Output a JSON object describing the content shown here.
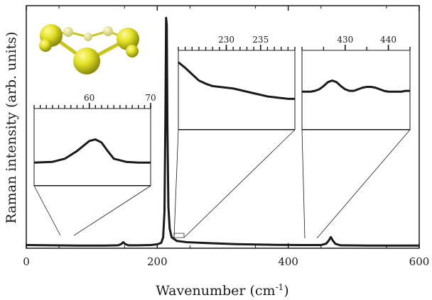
{
  "chart_data": {
    "type": "line",
    "xlabel_main": "Wavenumber (cm",
    "xlabel_sup": "-1",
    "xlabel_end": ")",
    "ylabel": "Raman intensity (arb. units)",
    "xlim": [
      0,
      600
    ],
    "ylim": [
      0,
      1
    ],
    "x_ticks": [
      0,
      200,
      400,
      600
    ],
    "y_ticks_labeled": false,
    "grid": false,
    "series": [
      {
        "color": "#1a1a1a",
        "x": [
          0,
          40,
          80,
          120,
          140,
          145,
          148,
          151,
          156,
          170,
          190,
          200,
          206,
          209,
          211,
          212.5,
          213.5,
          214.5,
          215.5,
          217,
          219,
          222,
          230,
          245,
          270,
          320,
          380,
          420,
          450,
          458,
          462,
          465,
          468,
          472,
          480,
          520,
          560,
          600
        ],
        "y": [
          0.013,
          0.012,
          0.011,
          0.011,
          0.012,
          0.017,
          0.025,
          0.017,
          0.012,
          0.012,
          0.013,
          0.016,
          0.022,
          0.045,
          0.15,
          0.55,
          0.95,
          0.92,
          0.5,
          0.17,
          0.08,
          0.045,
          0.03,
          0.025,
          0.022,
          0.017,
          0.014,
          0.013,
          0.013,
          0.019,
          0.032,
          0.046,
          0.032,
          0.018,
          0.012,
          0.011,
          0.011,
          0.011
        ]
      }
    ],
    "insets": [
      {
        "range": [
          51,
          70
        ],
        "tick_labels": [
          {
            "v": 60,
            "t": "60"
          },
          {
            "v": 70,
            "t": "70"
          }
        ],
        "minor_step": 1,
        "x": [
          51,
          54,
          56,
          58,
          60,
          61,
          62,
          63,
          64,
          66,
          68,
          70
        ],
        "y": [
          0.3,
          0.31,
          0.35,
          0.45,
          0.58,
          0.6,
          0.56,
          0.45,
          0.35,
          0.31,
          0.3,
          0.3
        ]
      },
      {
        "range": [
          223,
          240
        ],
        "tick_labels": [
          {
            "v": 230,
            "t": "230"
          },
          {
            "v": 235,
            "t": "235"
          }
        ],
        "minor_step": 1,
        "x": [
          223,
          224,
          225,
          226,
          227,
          228,
          229,
          230,
          231,
          232,
          233,
          234,
          235,
          236,
          237,
          238,
          239,
          240
        ],
        "y": [
          0.85,
          0.78,
          0.7,
          0.62,
          0.58,
          0.55,
          0.54,
          0.53,
          0.52,
          0.5,
          0.48,
          0.46,
          0.44,
          0.42,
          0.41,
          0.4,
          0.39,
          0.39
        ]
      },
      {
        "range": [
          420,
          445
        ],
        "tick_labels": [
          {
            "v": 430,
            "t": "430"
          },
          {
            "v": 440,
            "t": "440"
          }
        ],
        "minor_step": 5,
        "x": [
          420,
          421,
          422,
          423,
          424,
          425,
          426,
          427,
          428,
          429,
          430,
          431,
          432,
          433,
          434,
          435,
          436,
          437,
          438,
          439,
          440,
          441,
          442,
          443,
          444,
          445
        ],
        "y": [
          0.48,
          0.48,
          0.48,
          0.49,
          0.51,
          0.55,
          0.6,
          0.62,
          0.6,
          0.55,
          0.51,
          0.49,
          0.49,
          0.51,
          0.53,
          0.54,
          0.54,
          0.53,
          0.51,
          0.49,
          0.48,
          0.48,
          0.48,
          0.48,
          0.49,
          0.49
        ]
      }
    ],
    "molecule": {
      "color": "#e2e021",
      "atoms": [
        "S",
        "S",
        "S",
        "S",
        "H",
        "H",
        "H"
      ]
    }
  }
}
